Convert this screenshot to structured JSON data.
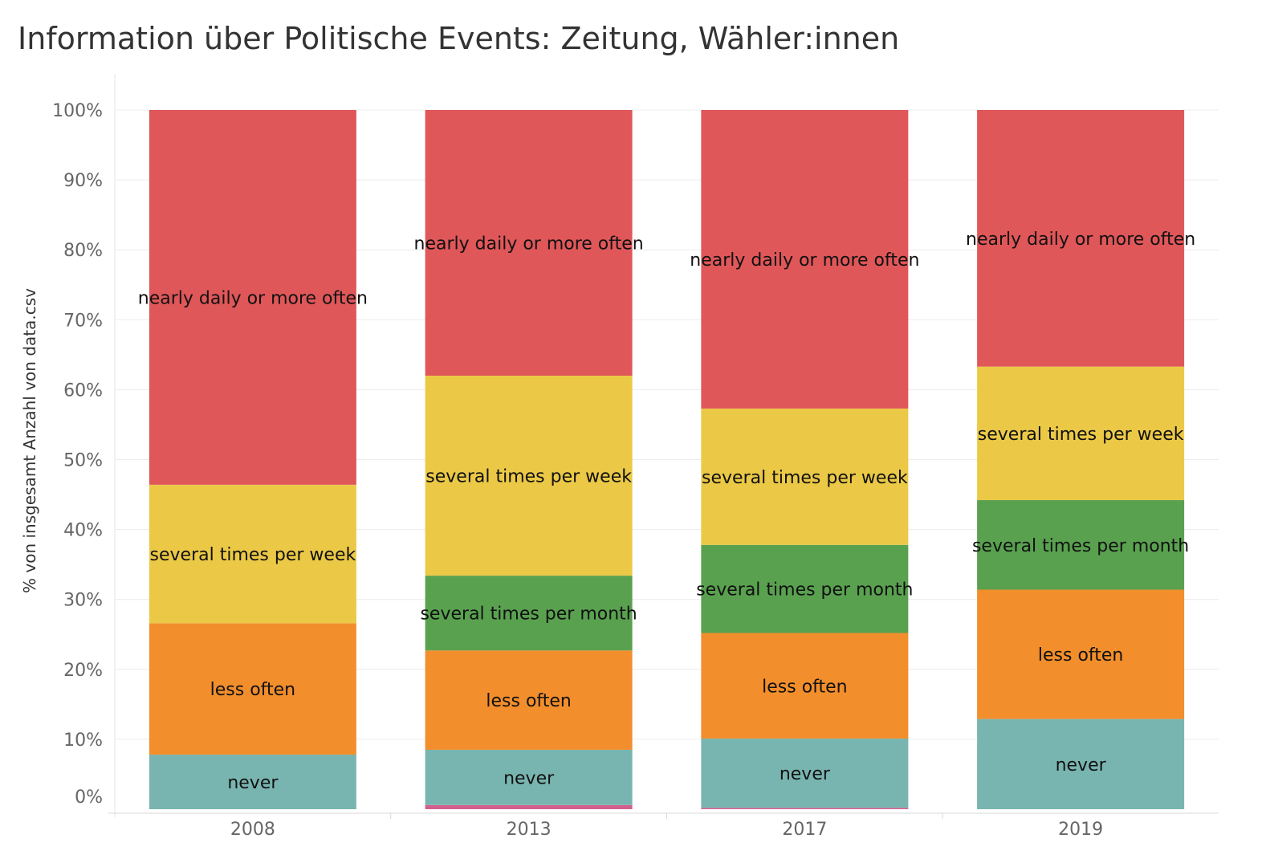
{
  "chart_data": {
    "type": "bar",
    "stacked": true,
    "title": "Information über Politische Events: Zeitung, Wähler:innen",
    "ylabel": "% von insgesamt Anzahl von data.csv",
    "xlabel": "",
    "ylim": [
      0,
      100
    ],
    "yticks": [
      "0%",
      "10%",
      "20%",
      "30%",
      "40%",
      "50%",
      "60%",
      "70%",
      "80%",
      "90%",
      "100%"
    ],
    "categories": [
      "2008",
      "2013",
      "2017",
      "2019"
    ],
    "grid": true,
    "series": [
      {
        "name": "",
        "color": "#d1608f",
        "values": [
          0.0,
          0.6,
          0.2,
          0.0
        ],
        "labeled": false
      },
      {
        "name": "never",
        "color": "#79b5b0",
        "values": [
          7.8,
          7.9,
          9.9,
          12.9
        ],
        "labeled": true
      },
      {
        "name": "less often",
        "color": "#f28e2c",
        "values": [
          18.8,
          14.2,
          15.1,
          18.5
        ],
        "labeled": true
      },
      {
        "name": "several times per month",
        "color": "#59a14f",
        "values": [
          0.0,
          10.7,
          12.6,
          12.8
        ],
        "labeled": true
      },
      {
        "name": "several times per week",
        "color": "#ebc946",
        "values": [
          19.8,
          28.6,
          19.5,
          19.1
        ],
        "labeled": true
      },
      {
        "name": "nearly daily or more often",
        "color": "#e05759",
        "values": [
          53.6,
          38.0,
          42.7,
          36.7
        ],
        "labeled": true
      }
    ]
  }
}
